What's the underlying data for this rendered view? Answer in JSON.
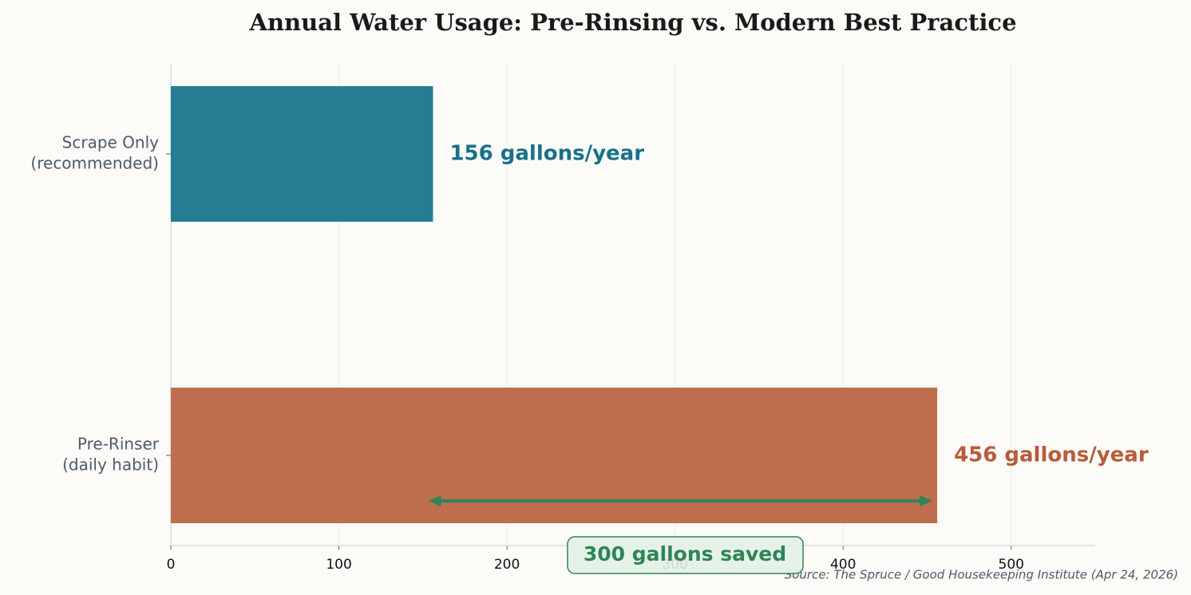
{
  "chart_data": {
    "type": "barh",
    "title": "Annual Water Usage: Pre-Rinsing vs. Modern Best Practice",
    "categories": [
      [
        "Scrape Only",
        "(recommended)"
      ],
      [
        "Pre-Rinser",
        "(daily habit)"
      ]
    ],
    "values": [
      156,
      456
    ],
    "value_labels": [
      "156 gallons/year",
      "456 gallons/year"
    ],
    "colors": [
      "#257d94",
      "#be6e4d"
    ],
    "label_colors": [
      "#19708a",
      "#b85b39"
    ],
    "xlim": [
      0,
      550
    ],
    "xticks": [
      0,
      100,
      200,
      300,
      400,
      500
    ],
    "grid": true,
    "annotation": "300 gallons saved",
    "annotation_color": "#2e8555",
    "source": "Source: The Spruce / Good Housekeeping Institute (Apr 24, 2026)"
  }
}
